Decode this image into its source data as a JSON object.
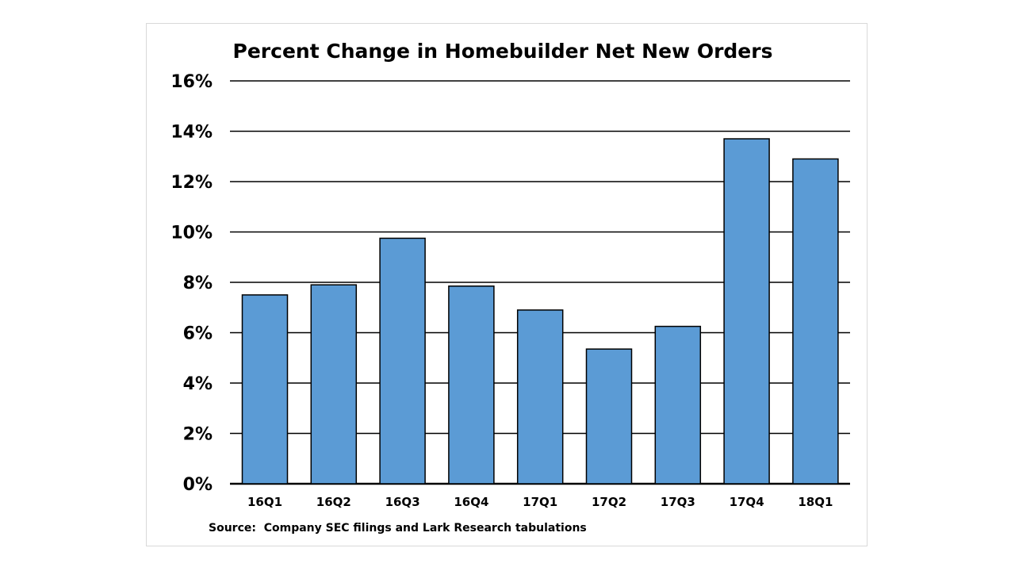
{
  "chart_data": {
    "type": "bar",
    "title": "Percent Change in Homebuilder Net New Orders",
    "categories": [
      "16Q1",
      "16Q2",
      "16Q3",
      "16Q4",
      "17Q1",
      "17Q2",
      "17Q3",
      "17Q4",
      "18Q1"
    ],
    "series": [
      {
        "values": [
          7.5,
          7.9,
          9.75,
          7.85,
          6.9,
          5.35,
          6.25,
          13.7,
          12.9
        ]
      }
    ],
    "ylim": [
      0,
      16
    ],
    "yticks": [
      0,
      2,
      4,
      6,
      8,
      10,
      12,
      14,
      16
    ],
    "ytick_labels": [
      "0%",
      "2%",
      "4%",
      "6%",
      "8%",
      "10%",
      "12%",
      "14%",
      "16%"
    ],
    "xlabel": "",
    "ylabel": "",
    "grid": true,
    "legend": "none",
    "bar_color": "#5b9bd5",
    "source": "Source:  Company SEC filings and Lark Research tabulations"
  }
}
